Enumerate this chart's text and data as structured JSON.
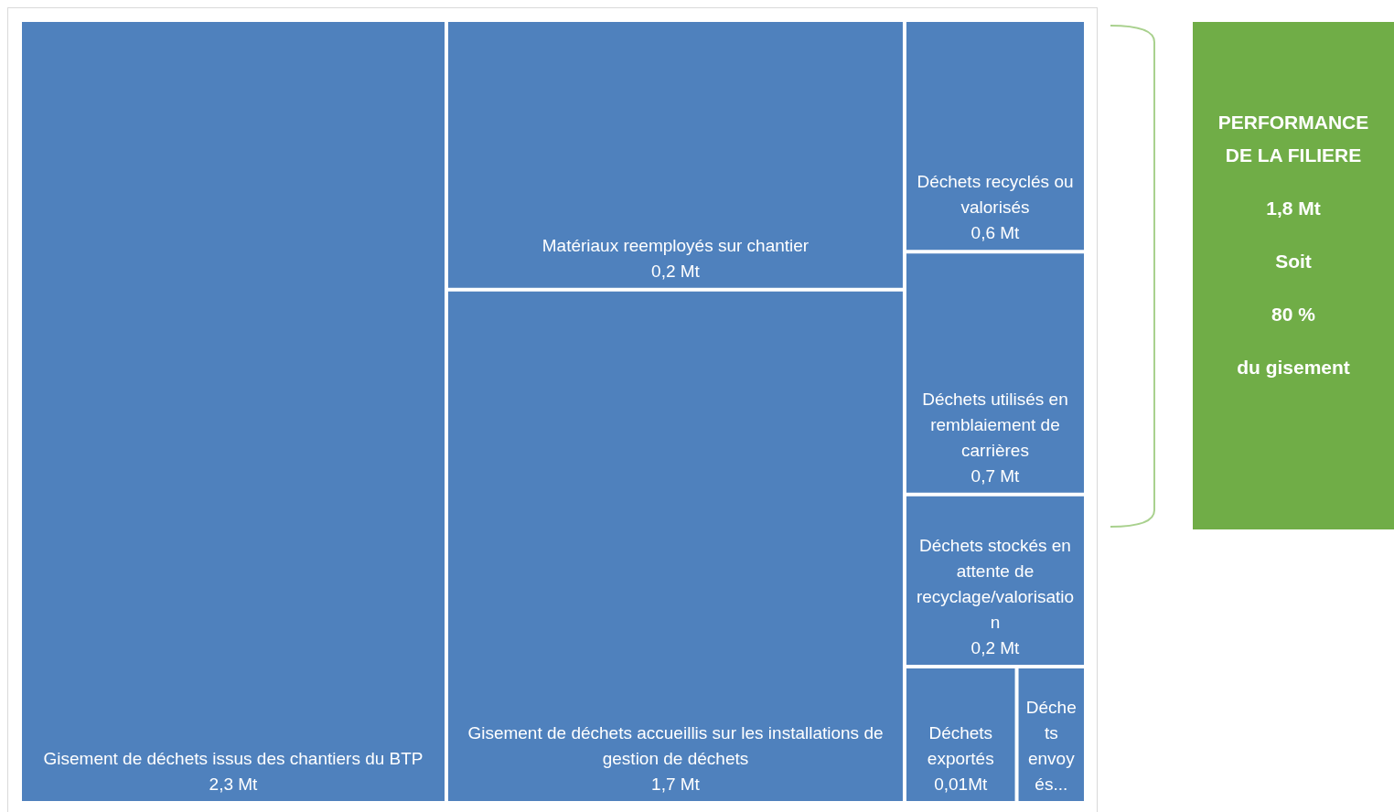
{
  "chart_data": {
    "type": "other",
    "color": "#4f81bd",
    "categories": [
      "Gisement de déchets issus des chantiers du BTP",
      "Matériaux reemployés sur chantier",
      "Gisement de déchets accueillis sur les installations de gestion de déchets",
      "Déchets recyclés ou valorisés",
      "Déchets utilisés en remblaiement de carrières",
      "Déchets stockés en attente de recyclage/valorisation",
      "Déchets exportés",
      "Déchets envoyés..."
    ],
    "values": [
      2.3,
      0.2,
      1.7,
      0.6,
      0.7,
      0.2,
      0.01,
      null
    ],
    "value_labels": [
      "2,3 Mt",
      "0,2 Mt",
      "1,7 Mt",
      "0,6 Mt",
      "0,7 Mt",
      "0,2 Mt",
      "0,01Mt",
      null
    ],
    "annotations": [
      "PERFORMANCE DE LA FILIERE",
      "1,8 Mt",
      "Soit",
      "80 %",
      "du gisement"
    ]
  }
}
